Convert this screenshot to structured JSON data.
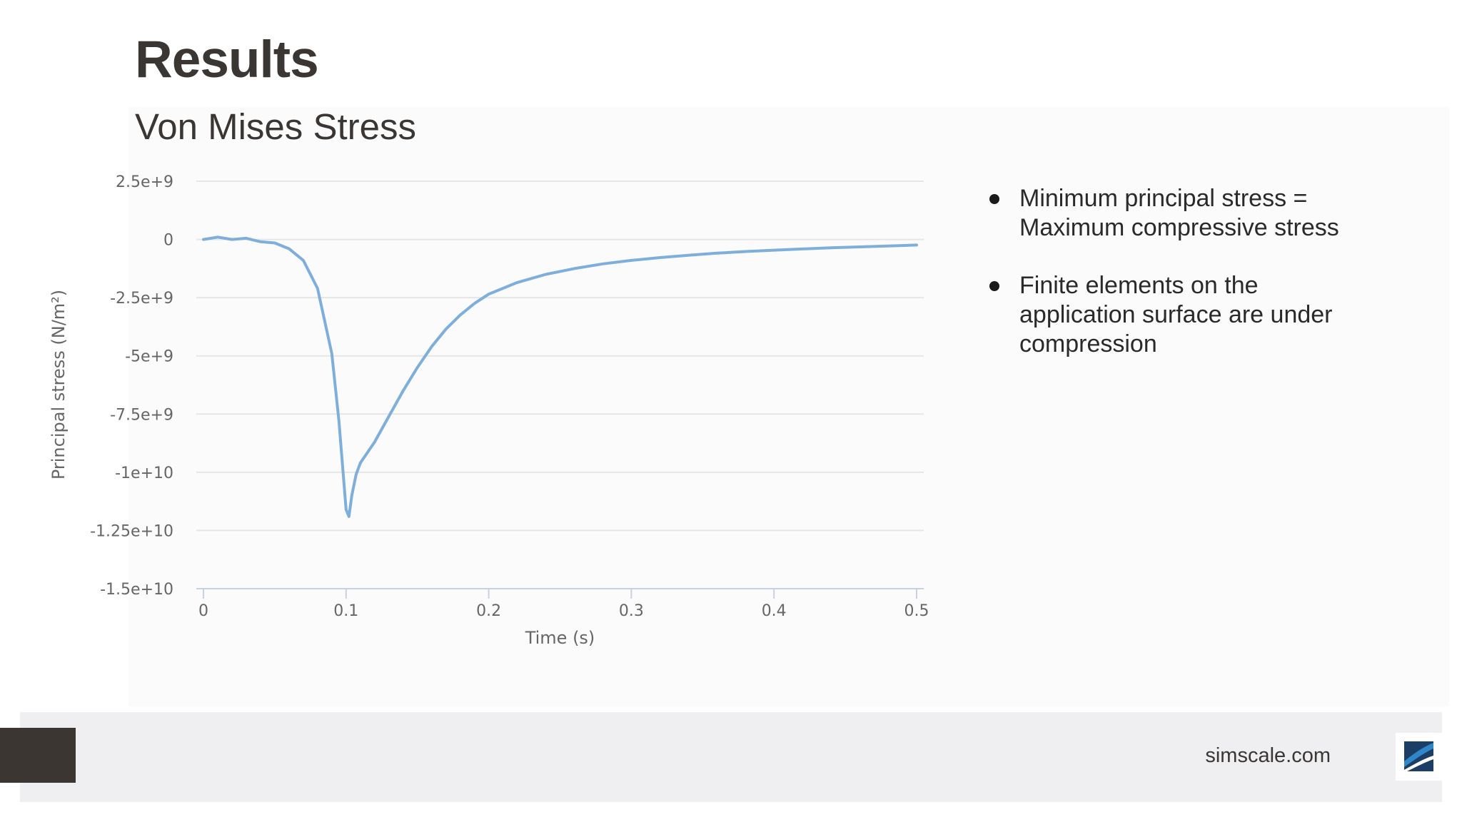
{
  "slide": {
    "title": "Results",
    "subtitle": "Von Mises Stress"
  },
  "bullets": [
    {
      "text": "Minimum principal stress = Maximum compressive stress"
    },
    {
      "text": "Finite elements on the application surface are under compression"
    }
  ],
  "footer": {
    "site": "simscale.com",
    "logo_icon": "simscale-logo-icon"
  },
  "colors": {
    "line": "#7eaedb",
    "grid": "#e6e6e6",
    "title": "#3a3634",
    "footer_block": "#3b3632",
    "footer_bar": "#efeff1",
    "logo_dark": "#1b3d66",
    "logo_light": "#2f86c8"
  },
  "chart_data": {
    "type": "line",
    "title": "",
    "xlabel": "Time (s)",
    "ylabel": "Principal stress (N/m²)",
    "xlim": [
      0,
      0.5
    ],
    "ylim": [
      -15000000000,
      2500000000
    ],
    "x_ticks": [
      0,
      0.1,
      0.2,
      0.3,
      0.4,
      0.5
    ],
    "x_tick_labels": [
      "0",
      "0.1",
      "0.2",
      "0.3",
      "0.4",
      "0.5"
    ],
    "y_ticks": [
      2500000000,
      0,
      -2500000000,
      -5000000000,
      -7500000000,
      -10000000000,
      -12500000000,
      -15000000000
    ],
    "y_tick_labels": [
      "2.5e+9",
      "0",
      "-2.5e+9",
      "-5e+9",
      "-7.5e+9",
      "-1e+10",
      "-1.25e+10",
      "-1.5e+10"
    ],
    "grid": true,
    "legend": "none",
    "series": [
      {
        "x": [
          0,
          0.01,
          0.02,
          0.03,
          0.04,
          0.05,
          0.06,
          0.07,
          0.08,
          0.09,
          0.095,
          0.1,
          0.102,
          0.104,
          0.107,
          0.11,
          0.12,
          0.13,
          0.14,
          0.15,
          0.16,
          0.17,
          0.18,
          0.19,
          0.2,
          0.22,
          0.24,
          0.26,
          0.28,
          0.3,
          0.32,
          0.34,
          0.36,
          0.38,
          0.4,
          0.42,
          0.44,
          0.46,
          0.48,
          0.5
        ],
        "y": [
          0,
          100000000,
          0,
          50000000,
          -100000000,
          -150000000,
          -400000000,
          -900000000,
          -2100000000,
          -4900000000,
          -7800000000,
          -11600000000,
          -11900000000,
          -11000000000,
          -10100000000,
          -9600000000,
          -8700000000,
          -7600000000,
          -6500000000,
          -5500000000,
          -4600000000,
          -3850000000,
          -3250000000,
          -2750000000,
          -2350000000,
          -1850000000,
          -1500000000,
          -1250000000,
          -1050000000,
          -900000000,
          -780000000,
          -680000000,
          -590000000,
          -520000000,
          -460000000,
          -410000000,
          -360000000,
          -320000000,
          -280000000,
          -240000000
        ]
      }
    ]
  }
}
